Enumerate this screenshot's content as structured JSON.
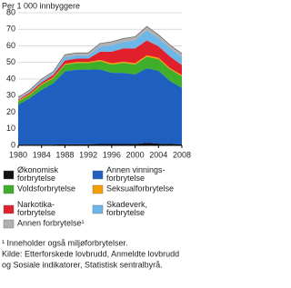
{
  "chart_data": {
    "type": "stacked-area",
    "y_label": "Per 1 000 innbyggere",
    "x": [
      1980,
      1982,
      1984,
      1986,
      1988,
      1990,
      1992,
      1994,
      1996,
      1998,
      2000,
      2002,
      2004,
      2006,
      2008
    ],
    "xlim": [
      1980,
      2008
    ],
    "xticks": [
      1980,
      1984,
      1988,
      1992,
      1996,
      2000,
      2004,
      2008
    ],
    "ylim": [
      0,
      80
    ],
    "yticks": [
      0,
      10,
      20,
      30,
      40,
      50,
      60,
      70,
      80
    ],
    "grid": true,
    "series": [
      {
        "name": "Økonomisk\nforbrytelse",
        "color": "#111111",
        "values": [
          0.5,
          0.5,
          0.5,
          0.5,
          0.6,
          0.7,
          0.7,
          0.8,
          0.8,
          0.8,
          0.8,
          1.5,
          1.0,
          0.8,
          0.7
        ]
      },
      {
        "name": "Annen vinnings-\nforbrytelse",
        "color": "#1f5fbf",
        "values": [
          24,
          28,
          33,
          37,
          44,
          45,
          45,
          45,
          43,
          43,
          42,
          45,
          44,
          38,
          34
        ]
      },
      {
        "name": "Voldsforbrytelse",
        "color": "#3fae2a",
        "values": [
          2,
          2,
          3,
          3,
          4,
          4,
          4,
          5,
          5,
          6,
          6,
          7,
          7,
          7,
          7
        ]
      },
      {
        "name": "Seksualforbrytelse",
        "color": "#f5a000",
        "values": [
          0.5,
          0.5,
          0.5,
          0.5,
          0.6,
          0.6,
          0.6,
          0.7,
          0.7,
          0.7,
          0.7,
          0.8,
          0.8,
          0.7,
          0.7
        ]
      },
      {
        "name": "Narkotika-\nforbrytelse",
        "color": "#e0202a",
        "values": [
          0.5,
          1,
          1,
          1.5,
          2,
          2,
          2,
          5,
          7,
          8,
          9,
          9,
          7,
          7,
          6
        ]
      },
      {
        "name": "Skadeverk,\nforbrytelse",
        "color": "#6db6e8",
        "values": [
          0.5,
          0.5,
          1,
          1,
          2,
          2,
          2,
          3,
          4,
          4,
          5,
          6,
          5,
          5,
          5
        ]
      },
      {
        "name": "Annen forbrytelse¹",
        "color": "#b0b0b0",
        "values": [
          1,
          1,
          1,
          1,
          1.5,
          1.5,
          1.5,
          2,
          2,
          2,
          2,
          2.5,
          2,
          2,
          2
        ]
      }
    ],
    "notes": [
      "¹ Inneholder også miljøforbrytelser.",
      "Kilde: Etterforskede lovbrudd, Anmeldte lovbrudd",
      "og Sosiale indikatorer, Statistisk sentralbyrå."
    ]
  }
}
